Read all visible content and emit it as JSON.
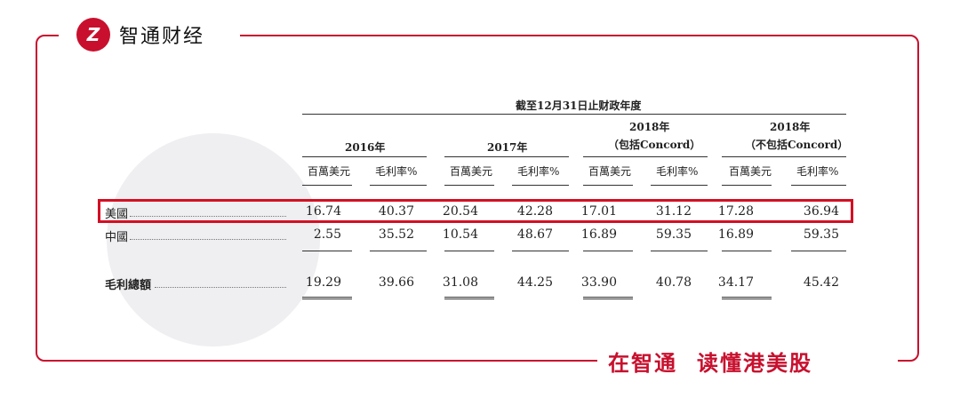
{
  "brand": {
    "logo_mark": "Z",
    "name": "智通财经",
    "accent": "#c8102e"
  },
  "slogan": {
    "part1": "在智通",
    "part2": "读懂港美股"
  },
  "table": {
    "caption": "截至12月31日止财政年度",
    "periods": [
      {
        "line1": "2016年",
        "line2": ""
      },
      {
        "line1": "2017年",
        "line2": ""
      },
      {
        "line1": "2018年",
        "line2": "（包括Concord）"
      },
      {
        "line1": "2018年",
        "line2": "（不包括Concord）"
      }
    ],
    "subheaders": [
      "百萬美元",
      "毛利率%"
    ],
    "rows": [
      {
        "label": "美國",
        "values": [
          "16.74",
          "40.37",
          "20.54",
          "42.28",
          "17.01",
          "31.12",
          "17.28",
          "36.94"
        ],
        "highlighted": true
      },
      {
        "label": "中國",
        "values": [
          "2.55",
          "35.52",
          "10.54",
          "48.67",
          "16.89",
          "59.35",
          "16.89",
          "59.35"
        ],
        "highlighted": false
      },
      {
        "label": "毛利總額",
        "values": [
          "19.29",
          "39.66",
          "31.08",
          "44.25",
          "33.90",
          "40.78",
          "34.17",
          "45.42"
        ],
        "highlighted": false
      }
    ]
  }
}
